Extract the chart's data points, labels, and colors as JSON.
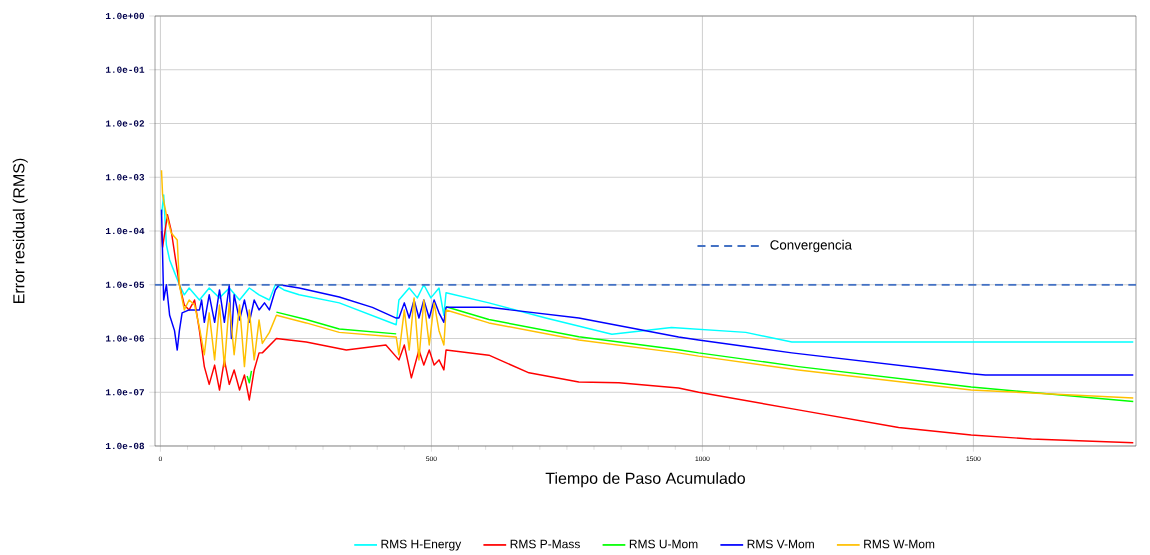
{
  "chart_data": {
    "type": "line",
    "xlabel": "Tiempo de Paso Acumulado",
    "ylabel": "Error residual (RMS)",
    "log": "y",
    "grid": true,
    "legend": "bottom",
    "xlim": [
      -10,
      1800
    ],
    "xticks": [
      0,
      500,
      1000,
      1500
    ],
    "ylim": [
      1e-08,
      1
    ],
    "yticks": [
      {
        "value": 1,
        "label": "1.0e+00"
      },
      {
        "value": 0.1,
        "label": "1.0e-01"
      },
      {
        "value": 0.01,
        "label": "1.0e-02"
      },
      {
        "value": 0.001,
        "label": "1.0e-03"
      },
      {
        "value": 0.0001,
        "label": "1.0e-04"
      },
      {
        "value": 1e-05,
        "label": "1.0e-05"
      },
      {
        "value": 1e-06,
        "label": "1.0e-06"
      },
      {
        "value": 1e-07,
        "label": "1.0e-07"
      },
      {
        "value": 1e-08,
        "label": "1.0e-08"
      }
    ],
    "ref_lines": [
      {
        "axis": "y",
        "value": 1e-05,
        "label": "Convergencia",
        "color": "#4472c4",
        "line_style": "dashed"
      }
    ],
    "series": [
      {
        "name": "RMS H-Energy",
        "color": "#00ffff",
        "x": [
          2,
          6,
          11,
          17,
          26,
          35,
          44,
          53,
          72,
          90,
          109,
          127,
          146,
          164,
          182,
          201,
          212,
          228,
          256,
          330,
          435,
          440,
          459,
          474,
          486,
          499,
          514,
          523,
          527,
          606,
          711,
          833,
          943,
          1080,
          1165,
          1607,
          1795
        ],
        "values": [
          0.0002,
          0.00047,
          5.5e-05,
          2.9e-05,
          1.7e-05,
          1e-05,
          6.5e-06,
          8.7e-06,
          5.2e-06,
          8.7e-06,
          5.7e-06,
          8.7e-06,
          5.2e-06,
          8.7e-06,
          6.5e-06,
          5.2e-06,
          1e-05,
          8e-06,
          6.5e-06,
          4.6e-06,
          1.8e-06,
          5.2e-06,
          8.7e-06,
          5.7e-06,
          1e-05,
          5.7e-06,
          8.7e-06,
          2.7e-06,
          7.1e-06,
          4.6e-06,
          2.4e-06,
          1.2e-06,
          1.6e-06,
          1.3e-06,
          8.6e-07,
          8.6e-07,
          8.6e-07
        ]
      },
      {
        "name": "RMS P-Mass",
        "color": "#ff0000",
        "x": [
          2,
          4,
          13,
          20,
          28,
          35,
          44,
          53,
          63,
          72,
          81,
          90,
          100,
          109,
          118,
          127,
          136,
          146,
          155,
          164,
          173,
          182,
          188,
          214,
          269,
          343,
          416,
          440,
          450,
          463,
          477,
          486,
          496,
          505,
          514,
          523,
          527,
          606,
          680,
          772,
          846,
          956,
          993,
          1177,
          1362,
          1496,
          1607,
          1795
        ],
        "values": [
          0.0001,
          5e-05,
          0.0002,
          0.0001,
          2.9e-05,
          1e-05,
          4.2e-06,
          3.4e-06,
          5.2e-06,
          1.4e-06,
          3e-07,
          1.4e-07,
          3.2e-07,
          1.1e-07,
          4e-07,
          1.4e-07,
          2.6e-07,
          1.1e-07,
          2.1e-07,
          7.2e-08,
          2.6e-07,
          5.4e-07,
          5.4e-07,
          1e-06,
          8.6e-07,
          6.1e-07,
          7.6e-07,
          4e-07,
          7.6e-07,
          1.85e-07,
          6.1e-07,
          3.2e-07,
          6.1e-07,
          3.2e-07,
          4e-07,
          2.6e-07,
          6.1e-07,
          4.9e-07,
          2.3e-07,
          1.55e-07,
          1.5e-07,
          1.2e-07,
          1e-07,
          4.7e-08,
          2.2e-08,
          1.6e-08,
          1.35e-08,
          1.15e-08
        ]
      },
      {
        "name": "RMS U-Mom",
        "color": "#00ff00",
        "x": [
          160,
          164,
          168,
          190,
          214,
          269,
          330,
          435,
          480,
          527,
          606,
          772,
          956,
          993,
          1177,
          1496,
          1795
        ],
        "values": [
          2e-07,
          1.5e-07,
          2.5e-07,
          null,
          3.1e-06,
          2.25e-06,
          1.5e-06,
          1.22e-06,
          null,
          3.9e-06,
          2.25e-06,
          1.08e-06,
          6.2e-07,
          5.4e-07,
          3e-07,
          1.25e-07,
          6.7e-08
        ]
      },
      {
        "name": "RMS V-Mom",
        "color": "#0000ff",
        "x": [
          2,
          6,
          11,
          17,
          26,
          31,
          35,
          40,
          53,
          72,
          76,
          81,
          90,
          100,
          109,
          118,
          127,
          131,
          136,
          146,
          155,
          164,
          173,
          182,
          192,
          201,
          212,
          219,
          256,
          330,
          391,
          435,
          440,
          450,
          459,
          468,
          477,
          486,
          496,
          505,
          514,
          523,
          527,
          606,
          772,
          956,
          993,
          1165,
          1496,
          1522,
          1795
        ],
        "values": [
          0.00025,
          5.2e-06,
          1e-05,
          2.7e-06,
          1.4e-06,
          6.1e-07,
          1.4e-06,
          3e-06,
          3.4e-06,
          3.4e-06,
          5.2e-06,
          2e-06,
          6.5e-06,
          2e-06,
          8e-06,
          2e-06,
          1e-05,
          1e-06,
          6.5e-06,
          2.2e-06,
          5.2e-06,
          2e-06,
          5.2e-06,
          3.4e-06,
          4.6e-06,
          3.4e-06,
          8e-06,
          1e-05,
          8.7e-06,
          5.9e-06,
          3.8e-06,
          2.4e-06,
          2.4e-06,
          4.6e-06,
          2.4e-06,
          5.2e-06,
          2.4e-06,
          5.2e-06,
          2.4e-06,
          5.2e-06,
          3e-06,
          2e-06,
          3.8e-06,
          3.8e-06,
          2.4e-06,
          1.07e-06,
          9.4e-07,
          5.4e-07,
          2.2e-07,
          2.1e-07,
          2.1e-07
        ]
      },
      {
        "name": "RMS W-Mom",
        "color": "#ffc000",
        "x": [
          2,
          4,
          11,
          20,
          31,
          35,
          44,
          53,
          63,
          72,
          81,
          90,
          100,
          109,
          118,
          127,
          136,
          146,
          155,
          164,
          173,
          182,
          188,
          201,
          214,
          269,
          330,
          435,
          440,
          450,
          459,
          468,
          477,
          486,
          496,
          505,
          514,
          523,
          527,
          606,
          772,
          956,
          993,
          1177,
          1496,
          1795
        ],
        "values": [
          0.00135,
          0.00047,
          0.0002,
          9.2e-05,
          6.8e-05,
          1e-05,
          3.4e-06,
          5.2e-06,
          4.2e-06,
          1.6e-06,
          5e-07,
          3e-06,
          4e-07,
          4.2e-06,
          3e-07,
          4.6e-06,
          5e-07,
          4.2e-06,
          3e-07,
          3.4e-06,
          4e-07,
          2.2e-06,
          8.1e-07,
          1.3e-06,
          2.7e-06,
          1.95e-06,
          1.3e-06,
          1.07e-06,
          5e-07,
          3.4e-06,
          6.1e-07,
          5.7e-06,
          4e-07,
          5.2e-06,
          7.6e-07,
          4.6e-06,
          1.4e-06,
          7.6e-07,
          3.4e-06,
          1.95e-06,
          9.4e-07,
          5.4e-07,
          4.7e-07,
          2.6e-07,
          1.1e-07,
          7.8e-08
        ]
      }
    ]
  }
}
